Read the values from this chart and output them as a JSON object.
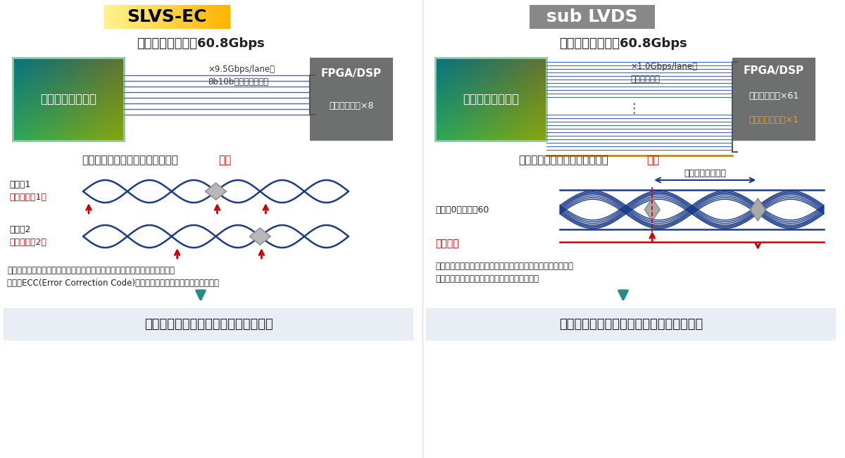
{
  "bg_color": "#ffffff",
  "divider_color": "#cccccc",
  "left_title": "SLVS-EC",
  "right_title": "sub LVDS",
  "left_title_bg": "#f5c518",
  "right_title_bg": "#888888",
  "subtitle": "実効データレート60.8Gbps",
  "sensor_label": "イメージセンサー",
  "fpga_label": "FPGA/DSP",
  "left_note": "×9.5Gbps/lane、\n8b10bで使用した場合",
  "right_note": "×1.0Gbps/laneで\n使用した場合",
  "left_lane_label": "データレーン×8",
  "right_data_lane_label": "データレーン×61",
  "right_clock_lane_label": "クロックレーン×1",
  "right_clock_lane_color": "#e8a020",
  "left_embedded_title": "エンベデッドクロック：等長配線",
  "left_embedded_required": "不要",
  "left_embedded_required_color": "#cc0000",
  "right_source_title": "ソースシンクロナス：等長配線",
  "right_source_required": "必要",
  "right_source_required_color": "#cc0000",
  "left_data1_label_line1": "データ1",
  "left_data1_label_line2": "（クロック1）",
  "left_data1_color": "#cc0000",
  "left_data2_label_line1": "データ2",
  "left_data2_label_line2": "（クロック2）",
  "left_data2_color": "#cc0000",
  "right_data_label": "データ0～データ60",
  "right_clock_label": "クロック",
  "right_clock_label_color": "#cc0000",
  "right_skew_label": "レーン間スキュー",
  "left_desc_line1": "データにクロックが埋め込まれているため、レーン間スキュー調整は不要。",
  "left_desc_line2": "また、ECC(Error Correction Code)オプションによりエラー訂正も可能。",
  "right_desc_line1": "全レーンのデータを一つのクロックで同期して受信するため、",
  "right_desc_line2": "レーン間スキューを抑制する等長配線が必要。",
  "left_bottom": "・伝送路設計が容易　・高速化に最適",
  "right_bottom": "・高速化に不向き　・パッケージの大型化",
  "bottom_bg": "#e8eef4",
  "arrow_color": "#2a8a8a",
  "line_color": "#1a3a8a",
  "wire_color": "#4466cc"
}
